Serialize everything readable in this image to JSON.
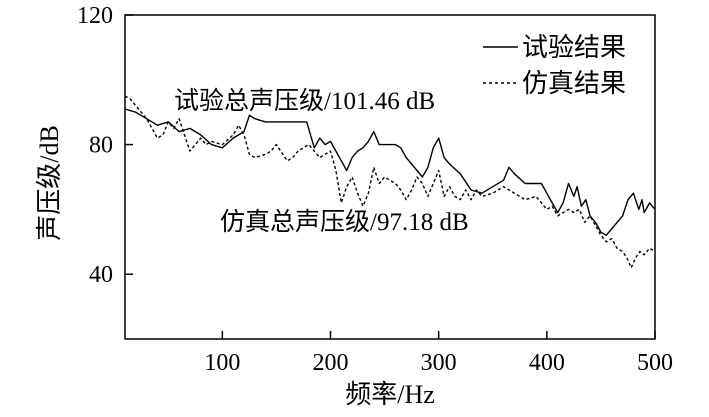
{
  "chart_data": {
    "type": "line",
    "title": "",
    "xlabel": "频率/Hz",
    "ylabel": "声压级/dB",
    "xlim": [
      10,
      500
    ],
    "ylim": [
      20,
      120
    ],
    "xticks": [
      100,
      200,
      300,
      400,
      500
    ],
    "yticks": [
      40,
      80,
      120
    ],
    "grid": false,
    "legend_position": "top-right",
    "series": [
      {
        "name": "试验结果",
        "style": "solid",
        "color": "#000000",
        "x": [
          10,
          20,
          30,
          40,
          50,
          60,
          70,
          80,
          90,
          100,
          110,
          120,
          125,
          130,
          140,
          150,
          160,
          170,
          178,
          185,
          190,
          195,
          200,
          205,
          210,
          215,
          220,
          225,
          230,
          235,
          240,
          245,
          250,
          260,
          265,
          270,
          275,
          280,
          285,
          290,
          295,
          300,
          305,
          310,
          320,
          330,
          340,
          350,
          360,
          365,
          370,
          380,
          390,
          395,
          400,
          405,
          410,
          415,
          420,
          425,
          428,
          432,
          436,
          440,
          445,
          450,
          455,
          460,
          470,
          475,
          480,
          485,
          488,
          490,
          495,
          500
        ],
        "values": [
          91,
          90,
          88,
          86,
          87,
          84,
          85,
          83,
          80,
          79,
          82,
          84,
          89,
          88,
          87,
          87,
          87,
          87,
          87,
          79,
          82,
          80,
          81,
          78,
          75,
          72,
          76,
          78,
          79,
          81,
          84,
          80,
          80,
          80,
          79,
          76,
          74,
          72,
          70,
          73,
          79,
          82,
          76,
          74,
          71,
          66,
          65,
          67,
          69,
          73,
          71,
          68,
          68,
          68,
          65,
          62,
          59,
          62,
          68,
          64,
          67,
          61,
          63,
          58,
          56,
          53,
          52,
          54,
          58,
          63,
          65,
          60,
          63,
          59,
          62,
          60
        ]
      },
      {
        "name": "仿真结果",
        "style": "dashed",
        "color": "#000000",
        "x": [
          10,
          15,
          20,
          25,
          30,
          35,
          40,
          45,
          50,
          55,
          60,
          65,
          70,
          75,
          80,
          85,
          90,
          100,
          110,
          115,
          120,
          125,
          130,
          140,
          145,
          150,
          160,
          165,
          170,
          175,
          180,
          185,
          190,
          195,
          200,
          205,
          210,
          215,
          220,
          225,
          230,
          235,
          240,
          245,
          250,
          255,
          260,
          265,
          270,
          275,
          280,
          285,
          290,
          295,
          300,
          305,
          310,
          315,
          320,
          325,
          330,
          335,
          340,
          350,
          360,
          370,
          380,
          390,
          400,
          405,
          410,
          420,
          425,
          430,
          435,
          440,
          445,
          450,
          455,
          460,
          465,
          470,
          474,
          478,
          482,
          486,
          490,
          495,
          500
        ],
        "values": [
          95,
          94,
          92,
          90,
          88,
          85,
          82,
          83,
          87,
          85,
          88,
          83,
          78,
          80,
          82,
          80,
          81,
          80,
          83,
          86,
          83,
          77,
          76,
          77,
          78,
          80,
          75,
          76,
          78,
          79,
          80,
          78,
          76,
          77,
          78,
          72,
          62,
          67,
          70,
          65,
          61,
          65,
          73,
          68,
          70,
          69,
          68,
          66,
          63,
          66,
          70,
          68,
          64,
          68,
          72,
          64,
          67,
          64,
          63,
          66,
          63,
          66,
          64,
          65,
          67,
          65,
          63,
          64,
          60,
          61,
          58,
          60,
          59,
          60,
          56,
          58,
          55,
          52,
          50,
          51,
          48,
          47,
          45,
          42,
          45,
          47,
          46,
          48,
          47
        ]
      }
    ],
    "annotations": [
      {
        "text": "试验总声压级/101.46 dB"
      },
      {
        "text": "仿真总声压级/97.18 dB"
      }
    ]
  }
}
